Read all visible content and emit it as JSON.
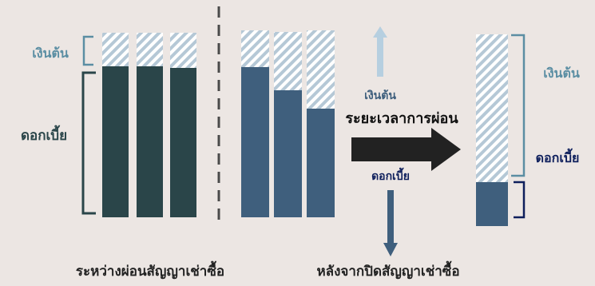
{
  "colors": {
    "background": "#ece6e3",
    "interest_dark": "#2a4549",
    "interest_blue": "#3f5f7d",
    "principal_hatch": "#b5c8d6",
    "principal_label": "#5b8ea3",
    "navy": "#0e1f5c",
    "arrow_dark": "#222222",
    "arrow_light": "#b6cfe0",
    "arrow_blue": "#3f5f7d",
    "divider": "#4a4a4a"
  },
  "left_panel": {
    "principal_label": "เงินต้น",
    "interest_label": "ดอกเบี้ย",
    "caption": "ระหว่างผ่อนสัญญาเช่าซื้อ"
  },
  "middle_panel": {
    "principal_label": "เงินต้น",
    "duration_label": "ระยะเวลาการผ่อน",
    "interest_label": "ดอกเบี้ย"
  },
  "right_panel": {
    "principal_label": "เงินต้น",
    "interest_label": "ดอกเบี้ย",
    "caption": "หลังจากปิดสัญญาเช่าซื้อ"
  }
}
